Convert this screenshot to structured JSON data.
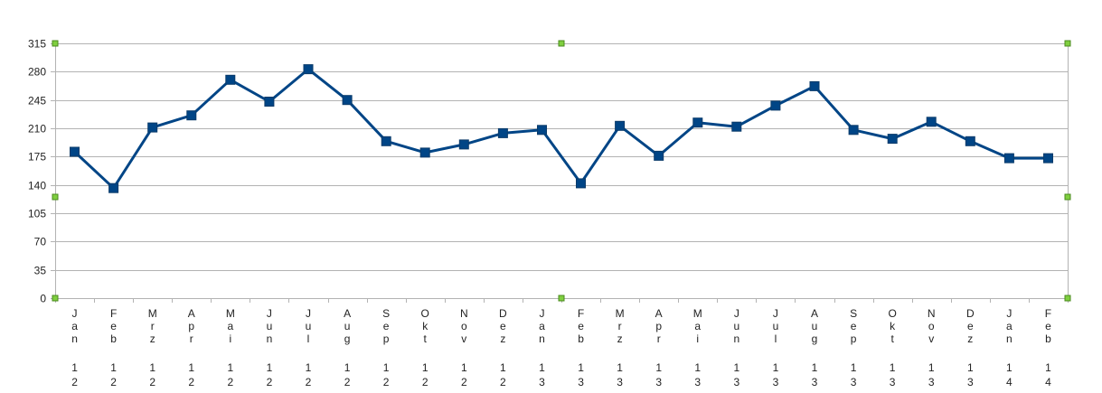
{
  "chart_data": {
    "type": "line",
    "title": "",
    "xlabel": "",
    "ylabel": "",
    "ylim": [
      0,
      315
    ],
    "yticks": [
      0,
      35,
      70,
      105,
      140,
      175,
      210,
      245,
      280,
      315
    ],
    "grid": true,
    "legend": "none",
    "categories": [
      {
        "month": "Jan",
        "year": "12"
      },
      {
        "month": "Feb",
        "year": "12"
      },
      {
        "month": "Mrz",
        "year": "12"
      },
      {
        "month": "Apr",
        "year": "12"
      },
      {
        "month": "Mai",
        "year": "12"
      },
      {
        "month": "Jun",
        "year": "12"
      },
      {
        "month": "Jul",
        "year": "12"
      },
      {
        "month": "Aug",
        "year": "12"
      },
      {
        "month": "Sep",
        "year": "12"
      },
      {
        "month": "Okt",
        "year": "12"
      },
      {
        "month": "Nov",
        "year": "12"
      },
      {
        "month": "Dez",
        "year": "12"
      },
      {
        "month": "Jan",
        "year": "13"
      },
      {
        "month": "Feb",
        "year": "13"
      },
      {
        "month": "Mrz",
        "year": "13"
      },
      {
        "month": "Apr",
        "year": "13"
      },
      {
        "month": "Mai",
        "year": "13"
      },
      {
        "month": "Jun",
        "year": "13"
      },
      {
        "month": "Jul",
        "year": "13"
      },
      {
        "month": "Aug",
        "year": "13"
      },
      {
        "month": "Sep",
        "year": "13"
      },
      {
        "month": "Okt",
        "year": "13"
      },
      {
        "month": "Nov",
        "year": "13"
      },
      {
        "month": "Dez",
        "year": "13"
      },
      {
        "month": "Jan",
        "year": "14"
      },
      {
        "month": "Feb",
        "year": "14"
      }
    ],
    "series": [
      {
        "values": [
          181,
          136,
          211,
          226,
          270,
          243,
          283,
          245,
          194,
          180,
          190,
          204,
          208,
          142,
          213,
          176,
          217,
          212,
          238,
          262,
          208,
          197,
          218,
          194,
          173,
          173
        ],
        "color": "#004586"
      }
    ]
  }
}
